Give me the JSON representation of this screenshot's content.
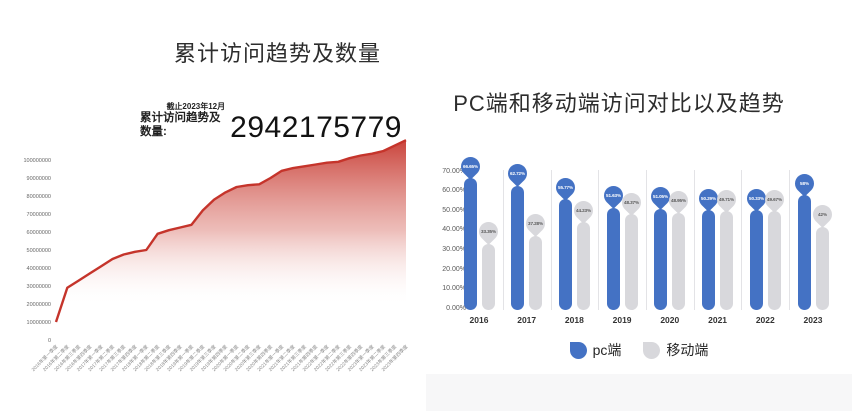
{
  "left_panel": {
    "title": "累计访问趋势及数量",
    "stat": {
      "caption_top": "截止2023年12月",
      "caption_main": "累计访问趋势及数量:",
      "value": "2942175779"
    }
  },
  "right_panel": {
    "title": "PC端和移动端访问对比以及趋势",
    "legend": [
      {
        "label": "pc端",
        "color": "#4472C4"
      },
      {
        "label": "移动端",
        "color": "#D8D8DC"
      }
    ]
  },
  "chart_data": [
    {
      "type": "area",
      "title": "累计访问趋势及数量",
      "annotation": {
        "line1": "截止2023年12月",
        "line2": "累计访问趋势及数量:",
        "value": "2942175779"
      },
      "line_color": "#c5342b",
      "xlabel": "",
      "ylabel": "",
      "ylim": [
        0,
        110000000
      ],
      "grid": false,
      "yticks": [
        0,
        10000000,
        20000000,
        30000000,
        40000000,
        50000000,
        60000000,
        70000000,
        80000000,
        90000000,
        100000000
      ],
      "x": [
        "2016年第一季度",
        "2016年第二季度",
        "2016年第三季度",
        "2016年第四季度",
        "2017年第一季度",
        "2017年第二季度",
        "2017年第三季度",
        "2017年第四季度",
        "2018年第一季度",
        "2018年第二季度",
        "2018年第三季度",
        "2018年第四季度",
        "2019年第一季度",
        "2019年第二季度",
        "2019年第三季度",
        "2019年第四季度",
        "2020年第一季度",
        "2020年第二季度",
        "2020年第三季度",
        "2020年第四季度",
        "2021年第一季度",
        "2021年第二季度",
        "2021年第三季度",
        "2021年第四季度",
        "2022年第一季度",
        "2022年第二季度",
        "2022年第三季度",
        "2022年第四季度",
        "2023年第一季度",
        "2023年第二季度",
        "2023年第三季度",
        "2023年第四季度"
      ],
      "values": [
        10000000,
        29000000,
        33000000,
        37000000,
        41000000,
        45000000,
        47500000,
        49000000,
        50000000,
        59000000,
        61000000,
        62500000,
        64000000,
        72000000,
        78000000,
        82000000,
        85000000,
        86000000,
        86500000,
        90000000,
        94000000,
        95500000,
        96500000,
        97500000,
        98500000,
        99000000,
        101000000,
        102500000,
        103500000,
        105000000,
        108000000,
        111000000
      ]
    },
    {
      "type": "bar",
      "title": "PC端和移动端访问对比以及趋势",
      "categories": [
        "2016",
        "2017",
        "2018",
        "2019",
        "2020",
        "2021",
        "2022",
        "2023"
      ],
      "series": [
        {
          "name": "pc端",
          "color": "#4472C4",
          "label_text_color": "#ffffff",
          "values": [
            66.65,
            62.72,
            55.77,
            51.63,
            51.05,
            50.29,
            50.33,
            58
          ],
          "labels": [
            "66.65%",
            "62.72%",
            "55.77%",
            "51.63%",
            "51.05%",
            "50.29%",
            "50.33%",
            "58%"
          ]
        },
        {
          "name": "移动端",
          "color": "#D8D8DC",
          "label_text_color": "#595959",
          "values": [
            33.35,
            37.28,
            44.23,
            48.37,
            48.95,
            49.71,
            49.67,
            42
          ],
          "labels": [
            "33.35%",
            "37.28%",
            "44.23%",
            "48.37%",
            "48.95%",
            "49.71%",
            "49.67%",
            "42%"
          ]
        }
      ],
      "yticks": [
        "0.00%",
        "10.00%",
        "20.00%",
        "30.00%",
        "40.00%",
        "50.00%",
        "60.00%",
        "70.00%"
      ],
      "ylim": [
        0,
        70
      ],
      "grid": false,
      "legend_position": "bottom"
    }
  ]
}
